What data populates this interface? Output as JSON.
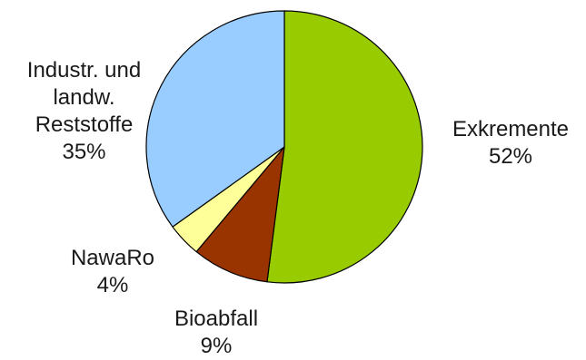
{
  "chart_data": {
    "type": "pie",
    "title": "",
    "slices": [
      {
        "name": "Exkremente",
        "value": 52,
        "percent_label": "52%",
        "color": "#99cc00",
        "label_lines": [
          "Exkremente"
        ]
      },
      {
        "name": "Bioabfall",
        "value": 9,
        "percent_label": "9%",
        "color": "#993300",
        "label_lines": [
          "Bioabfall"
        ]
      },
      {
        "name": "NawaRo",
        "value": 4,
        "percent_label": "4%",
        "color": "#ffff99",
        "label_lines": [
          "NawaRo"
        ]
      },
      {
        "name": "Industr. und landw. Reststoffe",
        "value": 35,
        "percent_label": "35%",
        "color": "#99ccff",
        "label_lines": [
          "Industr. und",
          "landw.",
          "Reststoffe"
        ]
      }
    ],
    "start_angle_deg": 0,
    "direction": "clockwise",
    "legend": "none",
    "data_labels": "outside"
  }
}
